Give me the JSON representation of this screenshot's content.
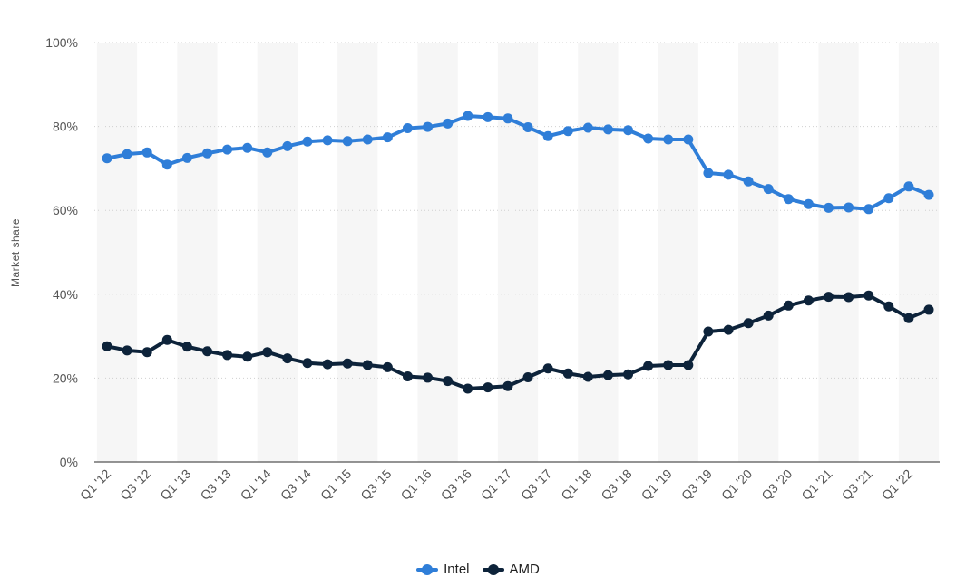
{
  "chart_data": {
    "type": "line",
    "ylabel": "Market share",
    "xlabel": "",
    "ylim": [
      0,
      100
    ],
    "y_ticks": [
      "0%",
      "20%",
      "40%",
      "60%",
      "80%",
      "100%"
    ],
    "y_tick_values": [
      0,
      20,
      40,
      60,
      80,
      100
    ],
    "grid": "horizontal dotted",
    "legend_position": "bottom-center",
    "categories": [
      "Q1 '12",
      "Q2 '12",
      "Q3 '12",
      "Q4 '12",
      "Q1 '13",
      "Q2 '13",
      "Q3 '13",
      "Q4 '13",
      "Q1 '14",
      "Q2 '14",
      "Q3 '14",
      "Q4 '14",
      "Q1 '15",
      "Q2 '15",
      "Q3 '15",
      "Q4 '15",
      "Q1 '16",
      "Q2 '16",
      "Q3 '16",
      "Q4 '16",
      "Q1 '17",
      "Q2 '17",
      "Q3 '17",
      "Q4 '17",
      "Q1 '18",
      "Q2 '18",
      "Q3 '18",
      "Q4 '18",
      "Q1 '19",
      "Q2 '19",
      "Q3 '19",
      "Q4 '19",
      "Q1 '20",
      "Q2 '20",
      "Q3 '20",
      "Q4 '20",
      "Q1 '21",
      "Q2 '21",
      "Q3 '21",
      "Q4 '21",
      "Q1 '22",
      "Q2 '22"
    ],
    "x_tick_labels": [
      "Q1 '12",
      "Q3 '12",
      "Q1 '13",
      "Q3 '13",
      "Q1 '14",
      "Q3 '14",
      "Q1 '15",
      "Q3 '15",
      "Q1 '16",
      "Q3 '16",
      "Q1 '17",
      "Q3 '17",
      "Q1 '18",
      "Q3 '18",
      "Q1 '19",
      "Q3 '19",
      "Q1 '20",
      "Q3 '20",
      "Q1 '21",
      "Q3 '21",
      "Q1 '22"
    ],
    "series": [
      {
        "name": "Intel",
        "color": "#2f7ed8",
        "values": [
          72.4,
          73.4,
          73.8,
          70.9,
          72.5,
          73.6,
          74.5,
          74.9,
          73.8,
          75.3,
          76.4,
          76.7,
          76.5,
          76.9,
          77.4,
          79.6,
          79.9,
          80.7,
          82.5,
          82.2,
          81.9,
          79.8,
          77.7,
          78.9,
          79.7,
          79.3,
          79.1,
          77.1,
          76.9,
          76.9,
          68.9,
          68.5,
          66.9,
          65.1,
          62.7,
          61.5,
          60.6,
          60.7,
          60.3,
          62.9,
          65.7,
          63.7
        ]
      },
      {
        "name": "AMD",
        "color": "#0d233a",
        "values": [
          27.6,
          26.6,
          26.2,
          29.1,
          27.5,
          26.4,
          25.5,
          25.1,
          26.2,
          24.7,
          23.6,
          23.3,
          23.5,
          23.1,
          22.6,
          20.4,
          20.1,
          19.3,
          17.5,
          17.8,
          18.1,
          20.2,
          22.3,
          21.1,
          20.3,
          20.7,
          20.9,
          22.9,
          23.1,
          23.1,
          31.1,
          31.5,
          33.1,
          34.9,
          37.3,
          38.5,
          39.4,
          39.3,
          39.7,
          37.1,
          34.3,
          36.3
        ]
      }
    ]
  }
}
